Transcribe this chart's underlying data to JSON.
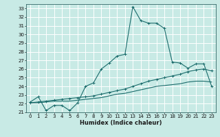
{
  "xlabel": "Humidex (Indice chaleur)",
  "bg_color": "#c8eae5",
  "grid_color": "#ffffff",
  "line_color": "#1a6b6b",
  "xlim": [
    -0.5,
    23.5
  ],
  "ylim": [
    21,
    33.5
  ],
  "xticks": [
    0,
    1,
    2,
    3,
    4,
    5,
    6,
    7,
    8,
    9,
    10,
    11,
    12,
    13,
    14,
    15,
    16,
    17,
    18,
    19,
    20,
    21,
    22,
    23
  ],
  "yticks": [
    21,
    22,
    23,
    24,
    25,
    26,
    27,
    28,
    29,
    30,
    31,
    32,
    33
  ],
  "line1_x": [
    0,
    1,
    2,
    3,
    4,
    5,
    6,
    7,
    8,
    9,
    10,
    11,
    12,
    13,
    14,
    15,
    16,
    17,
    18,
    19,
    20,
    21,
    22,
    23
  ],
  "line1_y": [
    22.2,
    22.8,
    21.2,
    21.8,
    21.8,
    21.2,
    22.1,
    24.0,
    24.4,
    26.0,
    26.7,
    27.5,
    27.7,
    33.2,
    31.6,
    31.3,
    31.3,
    30.7,
    26.8,
    26.7,
    26.1,
    26.6,
    26.6,
    24.0
  ],
  "line2_x": [
    0,
    1,
    2,
    3,
    4,
    5,
    6,
    7,
    8,
    9,
    10,
    11,
    12,
    13,
    14,
    15,
    16,
    17,
    18,
    19,
    20,
    21,
    22,
    23
  ],
  "line2_y": [
    22.1,
    22.2,
    22.3,
    22.4,
    22.5,
    22.6,
    22.7,
    22.8,
    22.9,
    23.1,
    23.3,
    23.5,
    23.7,
    24.0,
    24.3,
    24.6,
    24.8,
    25.0,
    25.2,
    25.4,
    25.7,
    25.9,
    26.0,
    25.8
  ],
  "line3_x": [
    0,
    1,
    2,
    3,
    4,
    5,
    6,
    7,
    8,
    9,
    10,
    11,
    12,
    13,
    14,
    15,
    16,
    17,
    18,
    19,
    20,
    21,
    22,
    23
  ],
  "line3_y": [
    22.1,
    22.1,
    22.2,
    22.3,
    22.3,
    22.3,
    22.4,
    22.5,
    22.6,
    22.7,
    22.9,
    23.1,
    23.2,
    23.4,
    23.6,
    23.8,
    24.0,
    24.1,
    24.2,
    24.3,
    24.5,
    24.6,
    24.6,
    24.5
  ],
  "marker_positions1": [
    0,
    1,
    2,
    3,
    4,
    5,
    6,
    7,
    8,
    9,
    10,
    11,
    12,
    13,
    14,
    15,
    16,
    17,
    18,
    19,
    20,
    21,
    22,
    23
  ],
  "marker_positions2": [
    0,
    5,
    10,
    15,
    20,
    21,
    22,
    23
  ],
  "marker_positions3": []
}
